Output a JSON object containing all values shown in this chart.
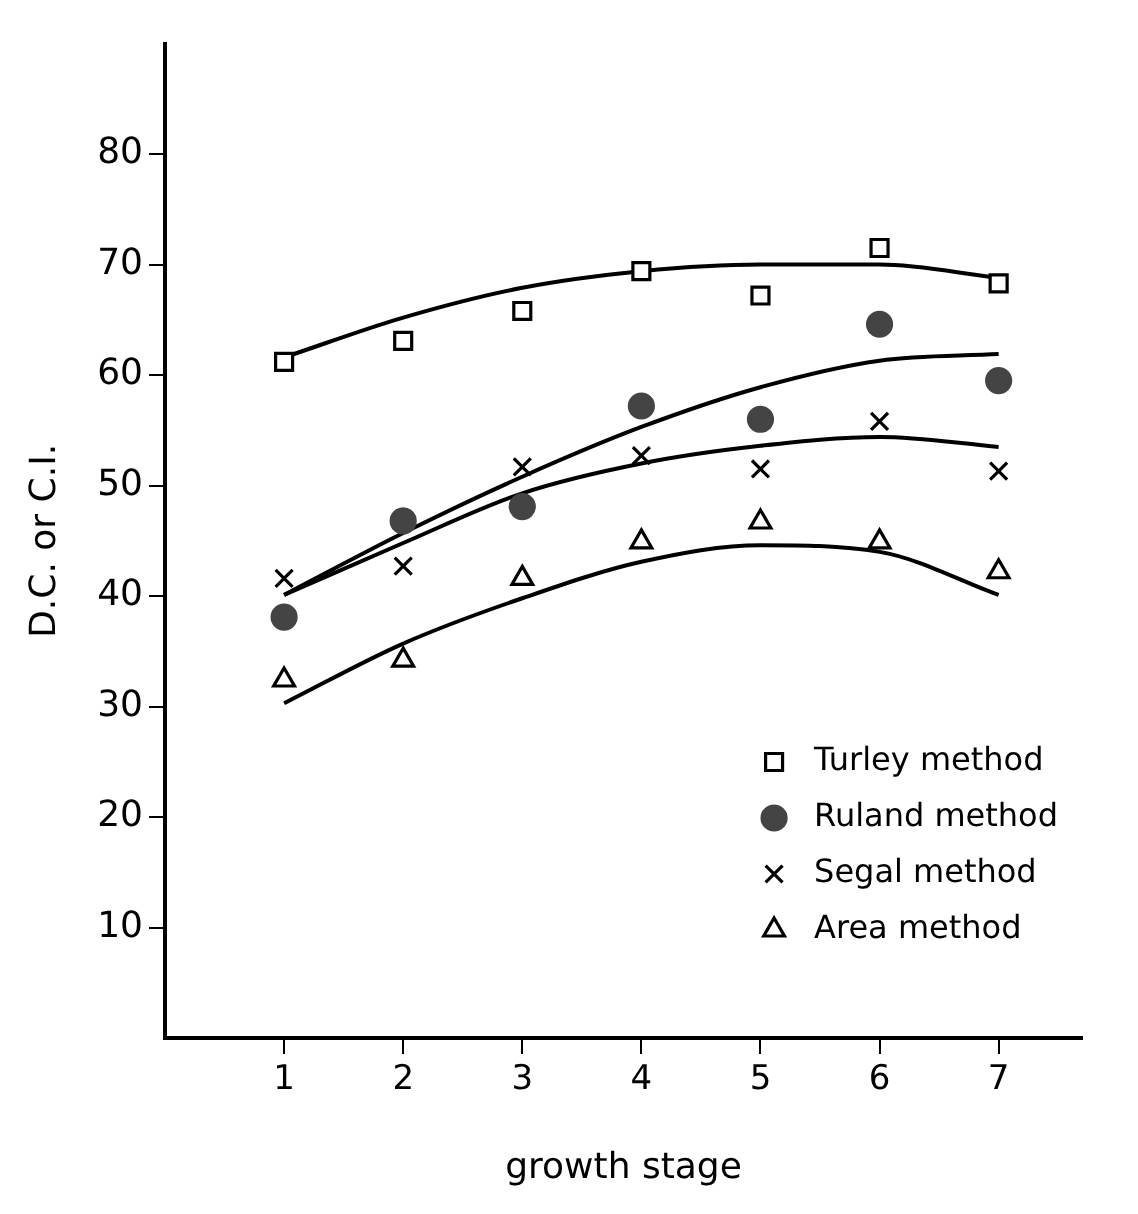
{
  "chart_data": {
    "type": "scatter",
    "xlabel": "growth stage",
    "ylabel": "D.C. or C.I.",
    "x": [
      1,
      2,
      3,
      4,
      5,
      6,
      7
    ],
    "xlim": [
      0,
      7.7
    ],
    "xticks": [
      1,
      2,
      3,
      4,
      5,
      6,
      7
    ],
    "ylim": [
      0,
      90
    ],
    "yticks": [
      10,
      20,
      30,
      40,
      50,
      60,
      70,
      80
    ],
    "grid": false,
    "legend": "bottom right",
    "series": [
      {
        "name": "Turley method",
        "color": "#000000",
        "marker": "square",
        "values": [
          61.2,
          63.1,
          65.8,
          69.4,
          67.2,
          71.5,
          68.3
        ]
      },
      {
        "name": "Ruland method",
        "color": "#444444",
        "marker": "circle",
        "values": [
          38.1,
          46.8,
          48.1,
          57.2,
          56.0,
          64.6,
          59.5
        ]
      },
      {
        "name": "Segal method",
        "color": "#000000",
        "marker": "cross",
        "values": [
          41.6,
          42.7,
          51.7,
          52.7,
          51.5,
          55.8,
          51.3
        ]
      },
      {
        "name": "Area method",
        "color": "#000000",
        "marker": "triangle",
        "values": [
          32.4,
          34.2,
          41.6,
          44.9,
          46.7,
          44.9,
          42.2
        ]
      },
      {
        "type": "line",
        "color": "#000000",
        "marker": "none",
        "x": [
          1,
          2,
          3,
          4,
          5,
          6,
          7
        ],
        "values": [
          61.6,
          65.2,
          67.9,
          69.4,
          70,
          70,
          68.8
        ]
      },
      {
        "type": "line",
        "color": "#000000",
        "marker": "none",
        "x": [
          1,
          2,
          3,
          4,
          5,
          6,
          7
        ],
        "values": [
          40.1,
          45.7,
          50.8,
          55.3,
          58.9,
          61.3,
          61.9
        ]
      },
      {
        "type": "line",
        "color": "#000000",
        "marker": "none",
        "x": [
          1,
          2,
          3,
          4,
          5,
          6,
          7
        ],
        "values": [
          40.1,
          44.8,
          49.3,
          52,
          53.6,
          54.4,
          53.5
        ]
      },
      {
        "type": "line",
        "color": "#000000",
        "marker": "none",
        "x": [
          1,
          2,
          3,
          4,
          5,
          6,
          7
        ],
        "values": [
          30.3,
          35.7,
          39.8,
          43.1,
          44.6,
          44,
          40.1
        ]
      }
    ]
  }
}
